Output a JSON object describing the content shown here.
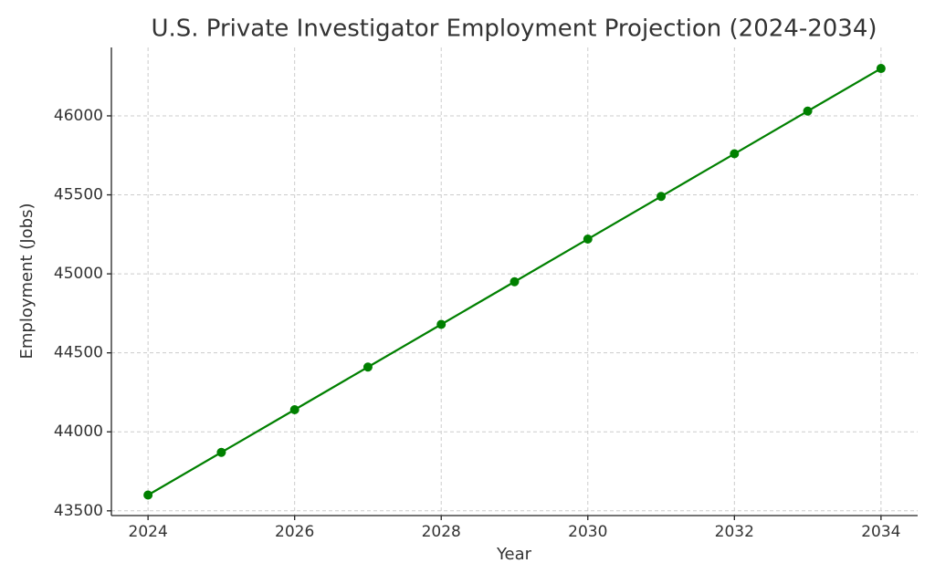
{
  "chart_data": {
    "type": "line",
    "title": "U.S. Private Investigator Employment Projection (2024-2034)",
    "x_label": "Year",
    "y_label": "Employment (Jobs)",
    "x": [
      2024,
      2025,
      2026,
      2027,
      2028,
      2029,
      2030,
      2031,
      2032,
      2033,
      2034
    ],
    "series": [
      {
        "name": "Employment",
        "color": "#008000",
        "values": [
          43600,
          43870,
          44140,
          44410,
          44680,
          44950,
          45220,
          45490,
          45760,
          46030,
          46300
        ]
      }
    ],
    "xlim": [
      2023.5,
      2034.5
    ],
    "xticks": [
      2024,
      2026,
      2028,
      2030,
      2032,
      2034
    ],
    "ylim": [
      43470,
      46433
    ],
    "yticks": [
      43500,
      44000,
      44500,
      45000,
      45500,
      46000
    ],
    "grid": true
  }
}
